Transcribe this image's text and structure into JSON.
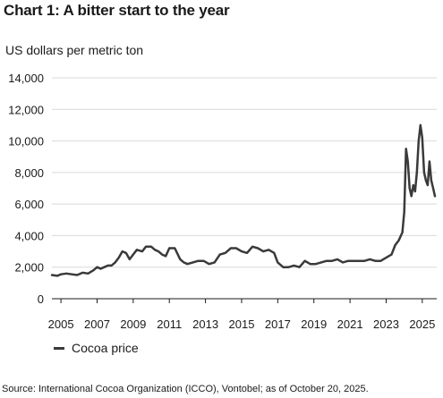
{
  "page": {
    "title": "Chart 1: A bitter start to the year",
    "source": "Source: International Cocoa Organization (ICCO), Vontobel; as of October 20, 2025."
  },
  "chart_data": {
    "type": "line",
    "title": "Chart 1: A bitter start to the year",
    "ylabel": "US dollars per metric ton",
    "xlabel": "",
    "xlim": [
      2004.5,
      2025.8
    ],
    "ylim": [
      0,
      14000
    ],
    "yticks": [
      0,
      2000,
      4000,
      6000,
      8000,
      10000,
      12000,
      14000
    ],
    "ytick_labels": [
      "0",
      "2,000",
      "4,000",
      "6,000",
      "8,000",
      "10,000",
      "12,000",
      "14,000"
    ],
    "xticks": [
      2005,
      2007,
      2009,
      2011,
      2013,
      2015,
      2017,
      2019,
      2021,
      2023,
      2025
    ],
    "xtick_labels": [
      "2005",
      "2007",
      "2009",
      "2011",
      "2013",
      "2015",
      "2017",
      "2019",
      "2021",
      "2023",
      "2025"
    ],
    "grid": "horizontal",
    "legend_position": "bottom-left",
    "series_color": "#3a3a3a",
    "series": [
      {
        "name": "Cocoa price",
        "x": [
          2004.5,
          2004.8,
          2005.0,
          2005.3,
          2005.6,
          2005.9,
          2006.2,
          2006.5,
          2006.8,
          2007.0,
          2007.2,
          2007.4,
          2007.6,
          2007.8,
          2008.0,
          2008.2,
          2008.4,
          2008.6,
          2008.8,
          2009.0,
          2009.2,
          2009.5,
          2009.7,
          2009.9,
          2010.0,
          2010.2,
          2010.4,
          2010.6,
          2010.8,
          2011.0,
          2011.3,
          2011.6,
          2011.8,
          2012.0,
          2012.3,
          2012.6,
          2012.9,
          2013.2,
          2013.5,
          2013.8,
          2014.1,
          2014.4,
          2014.7,
          2015.0,
          2015.3,
          2015.6,
          2015.9,
          2016.2,
          2016.5,
          2016.8,
          2017.0,
          2017.3,
          2017.6,
          2017.9,
          2018.2,
          2018.5,
          2018.8,
          2019.1,
          2019.4,
          2019.7,
          2020.0,
          2020.3,
          2020.6,
          2020.9,
          2021.2,
          2021.5,
          2021.8,
          2022.1,
          2022.4,
          2022.7,
          2023.0,
          2023.3,
          2023.5,
          2023.7,
          2023.9,
          2024.0,
          2024.1,
          2024.2,
          2024.3,
          2024.4,
          2024.5,
          2024.6,
          2024.7,
          2024.8,
          2024.9,
          2025.0,
          2025.1,
          2025.2,
          2025.3,
          2025.4,
          2025.5,
          2025.6,
          2025.7
        ],
        "values": [
          1500,
          1450,
          1550,
          1600,
          1550,
          1500,
          1650,
          1600,
          1800,
          2000,
          1900,
          2000,
          2100,
          2100,
          2300,
          2600,
          3000,
          2900,
          2500,
          2800,
          3100,
          3000,
          3300,
          3300,
          3300,
          3100,
          3000,
          2800,
          2700,
          3200,
          3200,
          2500,
          2300,
          2200,
          2300,
          2400,
          2400,
          2200,
          2300,
          2800,
          2900,
          3200,
          3200,
          3000,
          2900,
          3300,
          3200,
          3000,
          3100,
          2900,
          2300,
          2000,
          2000,
          2100,
          2000,
          2400,
          2200,
          2200,
          2300,
          2400,
          2400,
          2500,
          2300,
          2400,
          2400,
          2400,
          2400,
          2500,
          2400,
          2400,
          2600,
          2800,
          3400,
          3700,
          4200,
          5500,
          9500,
          8700,
          7000,
          6500,
          7200,
          6800,
          8000,
          10000,
          11000,
          10200,
          8000,
          7500,
          7200,
          8700,
          7500,
          7000,
          6500
        ]
      }
    ]
  },
  "legend": {
    "entries": [
      "Cocoa price"
    ]
  }
}
